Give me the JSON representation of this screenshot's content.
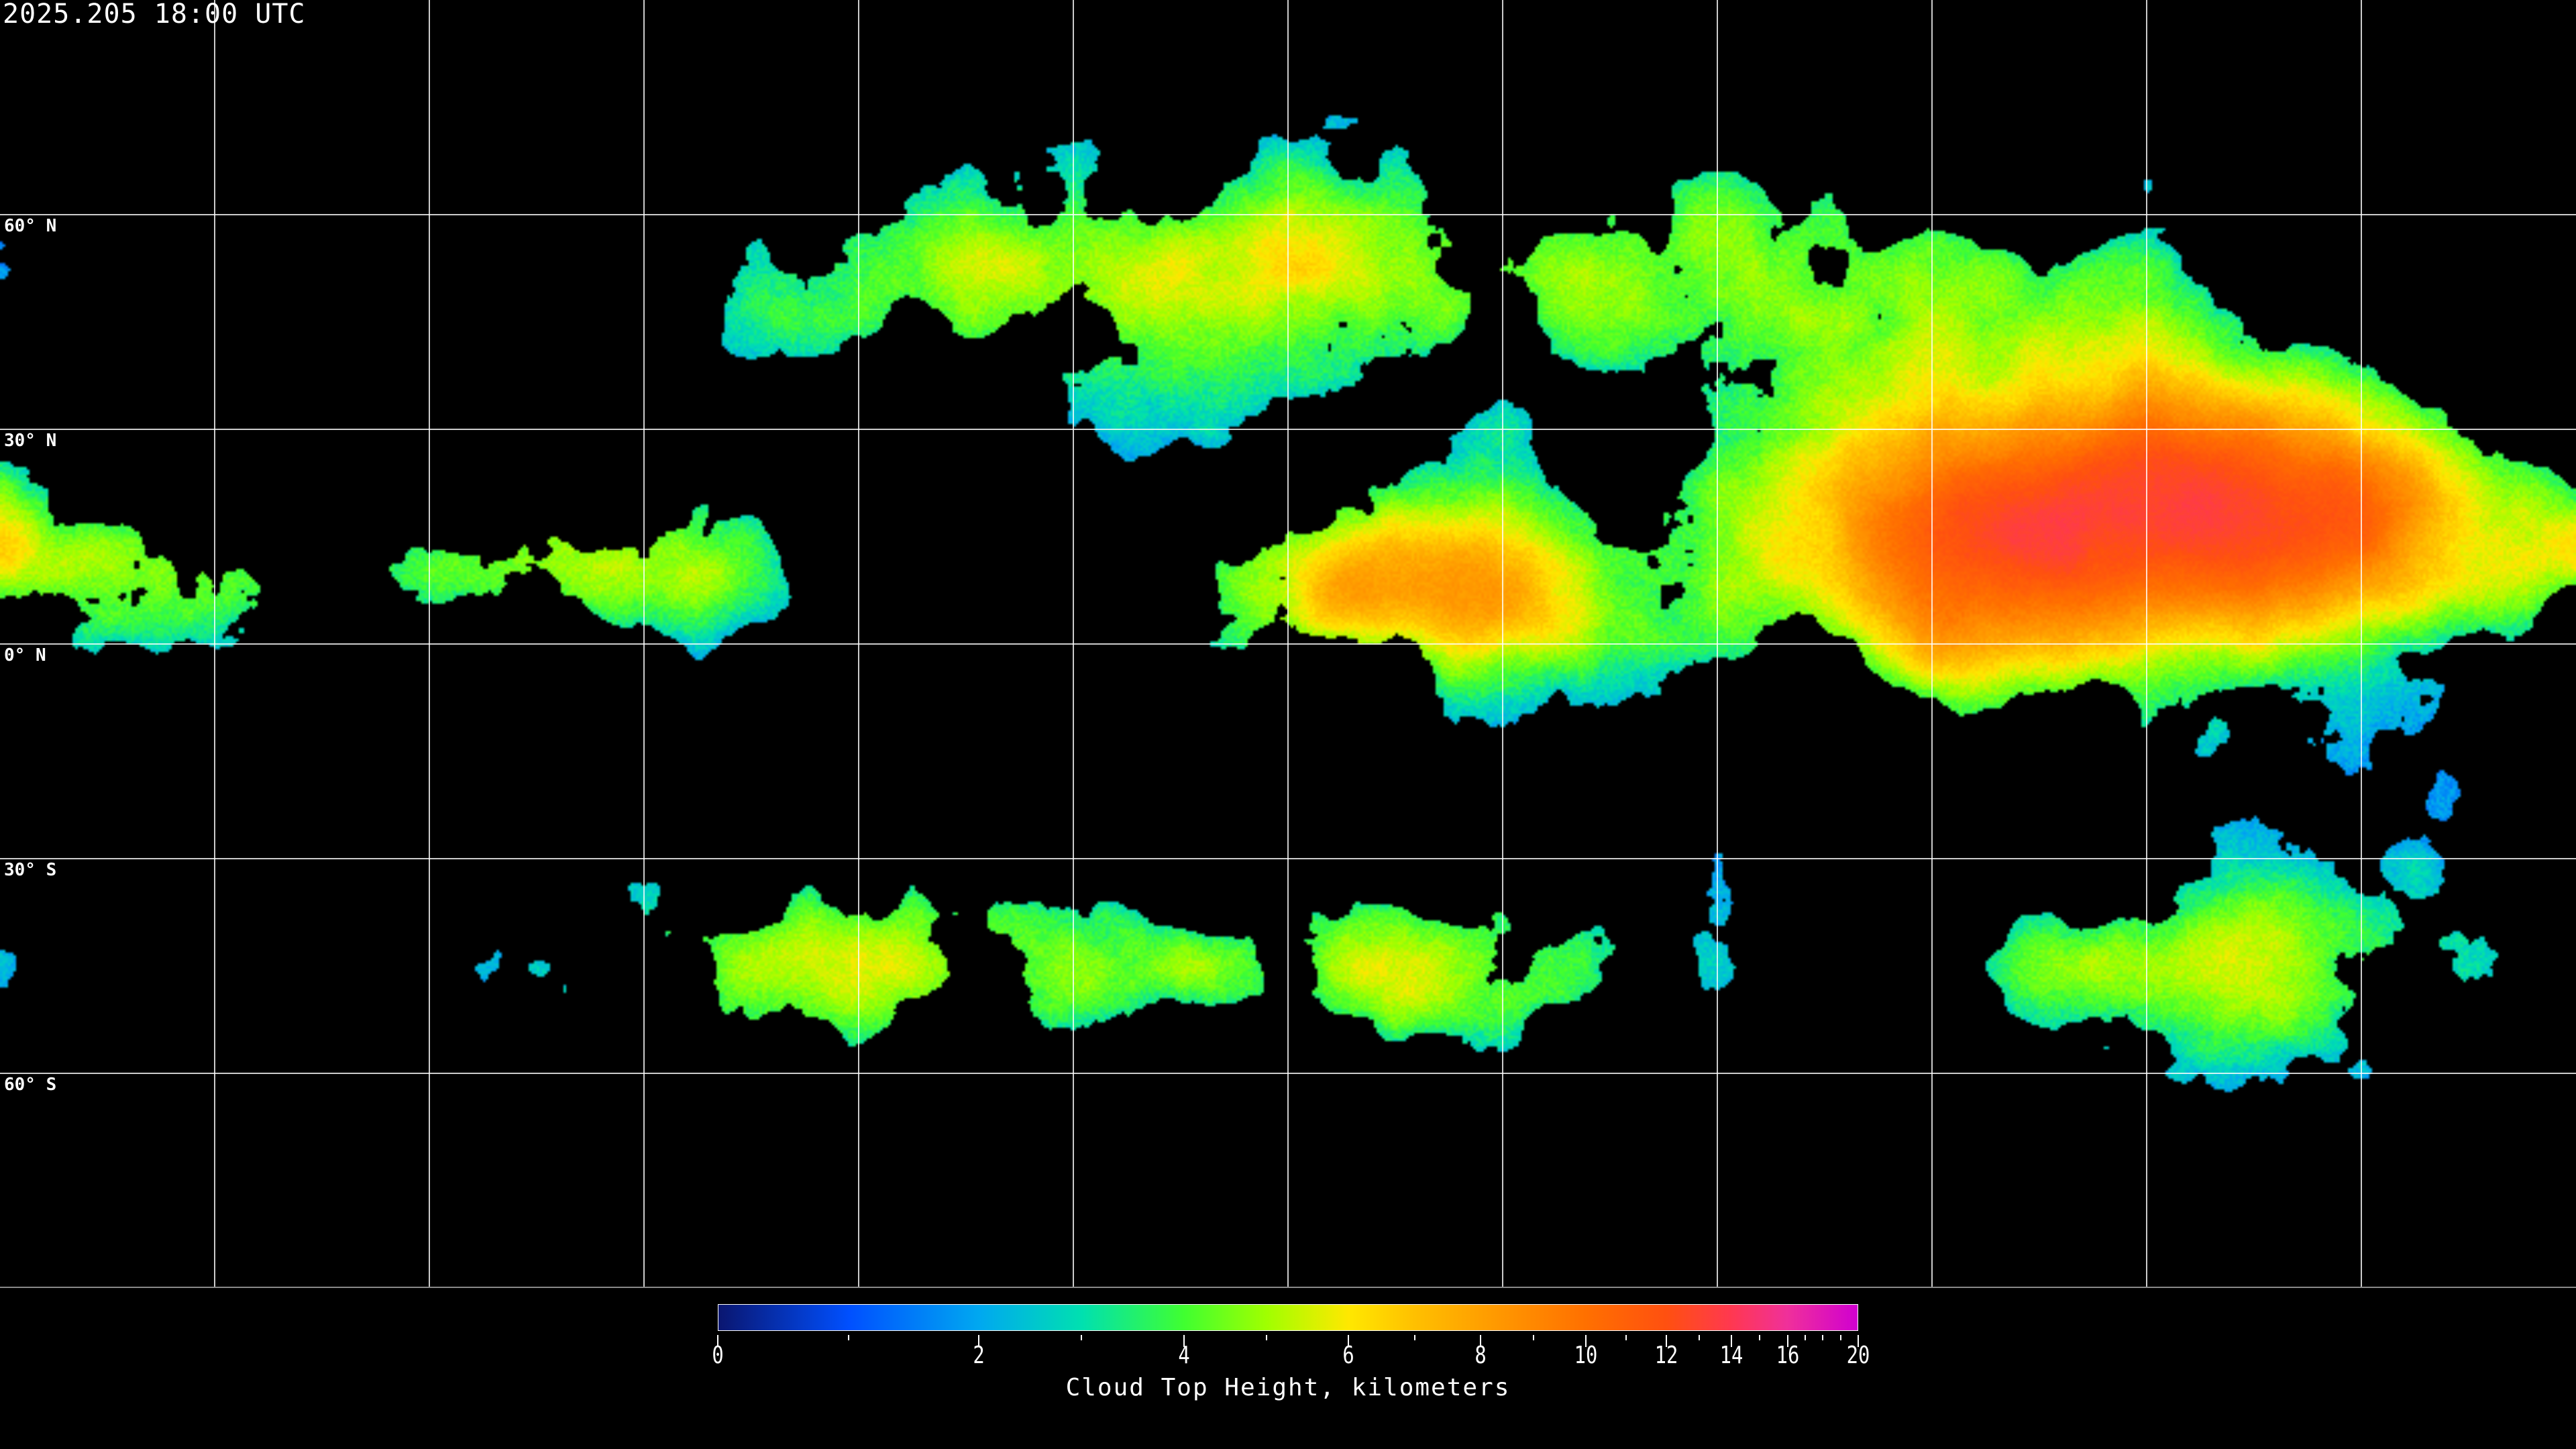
{
  "title": "2025.205 18:00 UTC",
  "map": {
    "projection": "equirectangular",
    "lon_range": [
      -180,
      180
    ],
    "lat_range": [
      -90,
      90
    ],
    "grid_spacing_deg": 30,
    "grid_color": "#ffffff",
    "coastline_color": "#ffffff",
    "lat_labels": [
      "60° N",
      "30° N",
      "0° N",
      "30° S",
      "60° S"
    ],
    "background": "#000000"
  },
  "colorbar": {
    "title": "Cloud Top Height, kilometers",
    "min": 0,
    "max": 20,
    "tick_labels": [
      "0",
      "2",
      "4",
      "6",
      "8",
      "10",
      "12",
      "14",
      "16",
      "20"
    ],
    "minor_ticks": [
      1,
      3,
      5,
      7,
      9,
      11,
      13,
      15,
      17,
      18,
      19
    ],
    "colors": [
      "#0a1670",
      "#0050ff",
      "#00a8f0",
      "#00e0b0",
      "#40ff30",
      "#a0ff00",
      "#ffe800",
      "#ffc000",
      "#ffa000",
      "#ff7000",
      "#ff5010",
      "#ff3850",
      "#f0309a",
      "#d000d0"
    ],
    "color_stops_km": [
      0,
      1,
      2,
      3,
      4,
      5,
      6,
      7,
      8,
      10,
      12,
      14,
      16,
      20
    ]
  }
}
